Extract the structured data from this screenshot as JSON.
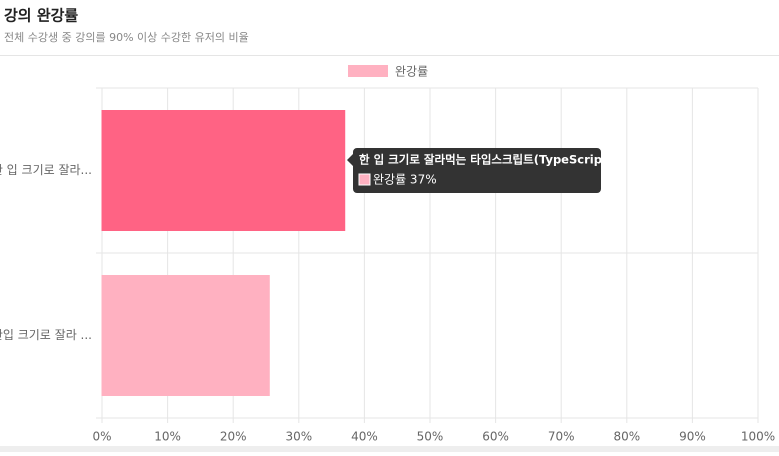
{
  "chart_data": {
    "type": "hbar",
    "title": "강의 완강률",
    "subtitle": "전체 수강생 중 강의를 90% 이상 수강한 유저의 비율",
    "categories": [
      "한 입 크기로 잘라...",
      "한입 크기로 잘라 ..."
    ],
    "series": [
      {
        "name": "완강률",
        "color": "#ffb1c1",
        "values": [
          37,
          25.5
        ]
      }
    ],
    "highlight_color": "#ff6384",
    "xlim": [
      0,
      100
    ],
    "xticks": [
      {
        "value": 0,
        "label": "0%"
      },
      {
        "value": 10,
        "label": "10%"
      },
      {
        "value": 20,
        "label": "20%"
      },
      {
        "value": 30,
        "label": "30%"
      },
      {
        "value": 40,
        "label": "40%"
      },
      {
        "value": 50,
        "label": "50%"
      },
      {
        "value": 60,
        "label": "60%"
      },
      {
        "value": 70,
        "label": "70%"
      },
      {
        "value": 80,
        "label": "80%"
      },
      {
        "value": 90,
        "label": "90%"
      },
      {
        "value": 100,
        "label": "100%"
      }
    ],
    "grid": true,
    "tooltip": {
      "title": "한 입 크기로 잘라먹는 타입스크립트(TypeScript)",
      "label": "완강률 37%"
    }
  }
}
